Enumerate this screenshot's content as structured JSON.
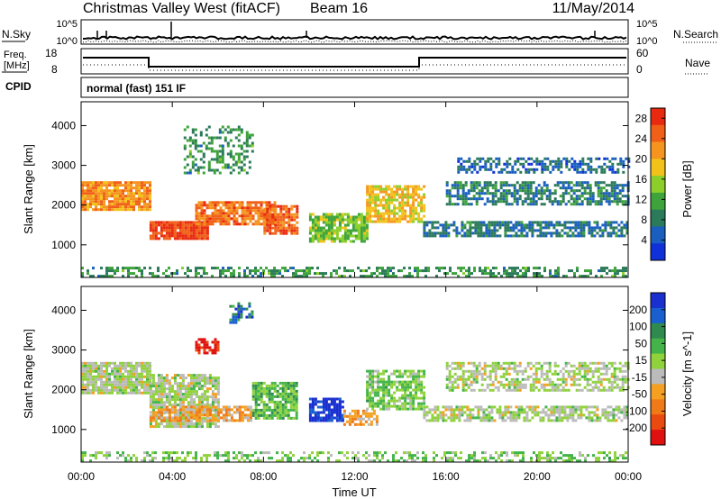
{
  "header": {
    "title": "Christmas Valley West (fitACF)",
    "beam": "Beam 16",
    "date": "11/May/2014"
  },
  "panels": {
    "nsky": {
      "label": "N.Sky",
      "tick_top": "10^5",
      "tick_bottom": "10^0",
      "right_tick_top": "10^5",
      "right_tick_bottom": "10^0",
      "right_label": "N.Search"
    },
    "freq": {
      "label_line1": "Freq.",
      "label_line2": "[MHz]",
      "tick_top": "18",
      "tick_bottom": "8",
      "right_tick_top": "60",
      "right_tick_bottom": "0",
      "right_label": "Nave"
    },
    "cpid": {
      "label": "CPID",
      "text": "normal (fast) 151 IF"
    }
  },
  "chart_data": [
    {
      "type": "heatmap",
      "title": "",
      "xlabel": "",
      "ylabel": "Slant Range [km]",
      "x_ticks": [
        "00:00",
        "04:00",
        "08:00",
        "12:00",
        "16:00",
        "20:00",
        "00:00"
      ],
      "y_ticks": [
        1000,
        2000,
        3000,
        4000
      ],
      "xlim_hours": [
        0,
        24
      ],
      "ylim_km": [
        180,
        4600
      ],
      "colorbar": {
        "label": "Power [dB]",
        "ticks": [
          4,
          8,
          12,
          16,
          20,
          24,
          28
        ],
        "range": [
          0,
          30
        ],
        "colors": [
          "#1030d8",
          "#1a5fc0",
          "#2b7a5a",
          "#3fa33c",
          "#8ccf2a",
          "#f2c21a",
          "#f59520",
          "#f06018",
          "#e82a10"
        ]
      },
      "bands": [
        {
          "x": [
            0.0,
            3.0
          ],
          "y": [
            1900,
            2600
          ],
          "level": 22,
          "density": 0.9
        },
        {
          "x": [
            3.0,
            5.5
          ],
          "y": [
            1150,
            1600
          ],
          "level": 27,
          "density": 0.95
        },
        {
          "x": [
            5.0,
            8.5
          ],
          "y": [
            1500,
            2100
          ],
          "level": 24,
          "density": 0.85
        },
        {
          "x": [
            8.0,
            9.5
          ],
          "y": [
            1300,
            2000
          ],
          "level": 25,
          "density": 0.85
        },
        {
          "x": [
            10.0,
            12.5
          ],
          "y": [
            1100,
            1800
          ],
          "level": 14,
          "density": 0.8
        },
        {
          "x": [
            12.5,
            15.0
          ],
          "y": [
            1600,
            2500
          ],
          "level": 18,
          "density": 0.8
        },
        {
          "x": [
            15.0,
            24.0
          ],
          "y": [
            1200,
            1600
          ],
          "level": 7,
          "density": 0.7
        },
        {
          "x": [
            16.0,
            24.0
          ],
          "y": [
            2000,
            2600
          ],
          "level": 8,
          "density": 0.65
        },
        {
          "x": [
            16.5,
            24.0
          ],
          "y": [
            2800,
            3200
          ],
          "level": 6,
          "density": 0.55
        },
        {
          "x": [
            4.5,
            7.5
          ],
          "y": [
            2800,
            4000
          ],
          "level": 10,
          "density": 0.35
        },
        {
          "x": [
            0.0,
            24.0
          ],
          "y": [
            180,
            450
          ],
          "level": 10,
          "density": 0.45
        }
      ]
    },
    {
      "type": "heatmap",
      "title": "",
      "xlabel": "Time UT",
      "ylabel": "Slant Range [km]",
      "x_ticks": [
        "00:00",
        "04:00",
        "08:00",
        "12:00",
        "16:00",
        "20:00",
        "00:00"
      ],
      "y_ticks": [
        1000,
        2000,
        3000,
        4000
      ],
      "xlim_hours": [
        0,
        24
      ],
      "ylim_km": [
        180,
        4600
      ],
      "colorbar": {
        "label": "Velocity [m s^-1]",
        "ticks": [
          200,
          100,
          50,
          15,
          -15,
          -50,
          -100,
          -200
        ],
        "range": [
          -250,
          250
        ],
        "colors": [
          "#1a2fd0",
          "#1a5fd0",
          "#2e8a4e",
          "#44b44a",
          "#8fd23c",
          "#bbbbbb",
          "#f5a020",
          "#f07a18",
          "#e84a10",
          "#e01010"
        ]
      },
      "bands": [
        {
          "x": [
            0.0,
            3.0
          ],
          "y": [
            1900,
            2700
          ],
          "level": 0,
          "density": 0.9
        },
        {
          "x": [
            3.0,
            6.0
          ],
          "y": [
            1100,
            2400
          ],
          "level": 0,
          "density": 0.8
        },
        {
          "x": [
            3.0,
            7.5
          ],
          "y": [
            1250,
            1600
          ],
          "level": -80,
          "density": 0.75
        },
        {
          "x": [
            7.5,
            9.5
          ],
          "y": [
            1300,
            2200
          ],
          "level": 60,
          "density": 0.8
        },
        {
          "x": [
            10.0,
            11.5
          ],
          "y": [
            1200,
            1800
          ],
          "level": 220,
          "density": 0.85
        },
        {
          "x": [
            11.5,
            13.0
          ],
          "y": [
            1100,
            1500
          ],
          "level": -70,
          "density": 0.8
        },
        {
          "x": [
            12.5,
            15.0
          ],
          "y": [
            1500,
            2500
          ],
          "level": 40,
          "density": 0.7
        },
        {
          "x": [
            15.0,
            24.0
          ],
          "y": [
            1200,
            1600
          ],
          "level": 0,
          "density": 0.7
        },
        {
          "x": [
            16.0,
            24.0
          ],
          "y": [
            2000,
            2700
          ],
          "level": 0,
          "density": 0.6
        },
        {
          "x": [
            5.0,
            6.0
          ],
          "y": [
            2900,
            3300
          ],
          "level": -220,
          "density": 0.6
        },
        {
          "x": [
            6.5,
            7.5
          ],
          "y": [
            3700,
            4200
          ],
          "level": 150,
          "density": 0.45
        },
        {
          "x": [
            0.0,
            24.0
          ],
          "y": [
            180,
            450
          ],
          "level": 40,
          "density": 0.45
        }
      ]
    }
  ]
}
